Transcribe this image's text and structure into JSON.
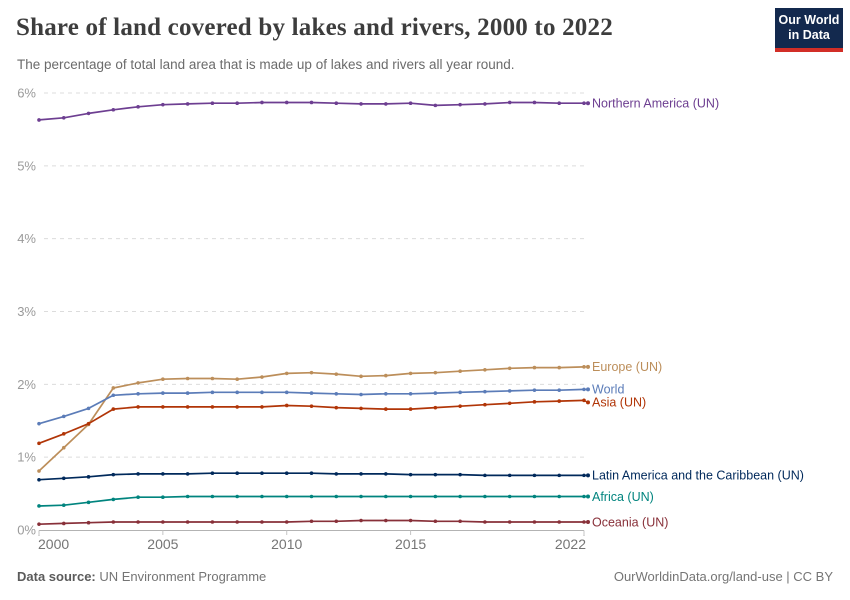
{
  "header": {
    "title": "Share of land covered by lakes and rivers, 2000 to 2022",
    "subtitle": "The percentage of total land area that is made up of lakes and rivers all year round.",
    "logo_line1": "Our World",
    "logo_line2": "in Data",
    "logo_bg": "#13294e",
    "logo_accent": "#d22e27"
  },
  "footer": {
    "source_label": "Data source:",
    "source_value": " UN Environment Programme",
    "link": "OurWorldinData.org/land-use | CC BY"
  },
  "chart_data": {
    "type": "line",
    "title": "Share of land covered by lakes and rivers, 2000 to 2022",
    "xlabel": "",
    "ylabel": "",
    "ylim": [
      0,
      6
    ],
    "grid": "dashed-horizontal",
    "legend_position": "right-edge-labels",
    "x": [
      2000,
      2001,
      2002,
      2003,
      2004,
      2005,
      2006,
      2007,
      2008,
      2009,
      2010,
      2011,
      2012,
      2013,
      2014,
      2015,
      2016,
      2017,
      2018,
      2019,
      2020,
      2021,
      2022
    ],
    "x_tick_labels": [
      "2000",
      "2005",
      "2010",
      "2015",
      "2022"
    ],
    "x_tick_values": [
      2000,
      2005,
      2010,
      2015,
      2022
    ],
    "y_tick_labels": [
      "0%",
      "1%",
      "2%",
      "3%",
      "4%",
      "5%",
      "6%"
    ],
    "y_tick_values": [
      0,
      1,
      2,
      3,
      4,
      5,
      6
    ],
    "series": [
      {
        "name": "Northern America (UN)",
        "color": "#6d3e91",
        "values": [
          5.63,
          5.66,
          5.72,
          5.77,
          5.81,
          5.84,
          5.85,
          5.86,
          5.86,
          5.87,
          5.87,
          5.87,
          5.86,
          5.85,
          5.85,
          5.86,
          5.83,
          5.84,
          5.85,
          5.87,
          5.87,
          5.86,
          5.86
        ]
      },
      {
        "name": "Europe (UN)",
        "color": "#bc8e5a",
        "values": [
          0.81,
          1.13,
          1.45,
          1.95,
          2.02,
          2.07,
          2.08,
          2.08,
          2.07,
          2.1,
          2.15,
          2.16,
          2.14,
          2.11,
          2.12,
          2.15,
          2.16,
          2.18,
          2.2,
          2.22,
          2.23,
          2.23,
          2.24
        ]
      },
      {
        "name": "World",
        "color": "#5b7cb8",
        "values": [
          1.46,
          1.56,
          1.67,
          1.85,
          1.87,
          1.88,
          1.88,
          1.89,
          1.89,
          1.89,
          1.89,
          1.88,
          1.87,
          1.86,
          1.87,
          1.87,
          1.88,
          1.89,
          1.9,
          1.91,
          1.92,
          1.92,
          1.93
        ]
      },
      {
        "name": "Asia (UN)",
        "color": "#b13507",
        "values": [
          1.19,
          1.32,
          1.46,
          1.66,
          1.69,
          1.69,
          1.69,
          1.69,
          1.69,
          1.69,
          1.71,
          1.7,
          1.68,
          1.67,
          1.66,
          1.66,
          1.68,
          1.7,
          1.72,
          1.74,
          1.76,
          1.77,
          1.78
        ]
      },
      {
        "name": "Latin America and the Caribbean (UN)",
        "color": "#00295b",
        "values": [
          0.69,
          0.71,
          0.73,
          0.76,
          0.77,
          0.77,
          0.77,
          0.78,
          0.78,
          0.78,
          0.78,
          0.78,
          0.77,
          0.77,
          0.77,
          0.76,
          0.76,
          0.76,
          0.75,
          0.75,
          0.75,
          0.75,
          0.75
        ]
      },
      {
        "name": "Africa (UN)",
        "color": "#00847e",
        "values": [
          0.33,
          0.34,
          0.38,
          0.42,
          0.45,
          0.45,
          0.46,
          0.46,
          0.46,
          0.46,
          0.46,
          0.46,
          0.46,
          0.46,
          0.46,
          0.46,
          0.46,
          0.46,
          0.46,
          0.46,
          0.46,
          0.46,
          0.46
        ]
      },
      {
        "name": "Oceania (UN)",
        "color": "#883039",
        "values": [
          0.08,
          0.09,
          0.1,
          0.11,
          0.11,
          0.11,
          0.11,
          0.11,
          0.11,
          0.11,
          0.11,
          0.12,
          0.12,
          0.13,
          0.13,
          0.13,
          0.12,
          0.12,
          0.11,
          0.11,
          0.11,
          0.11,
          0.11
        ]
      }
    ]
  }
}
